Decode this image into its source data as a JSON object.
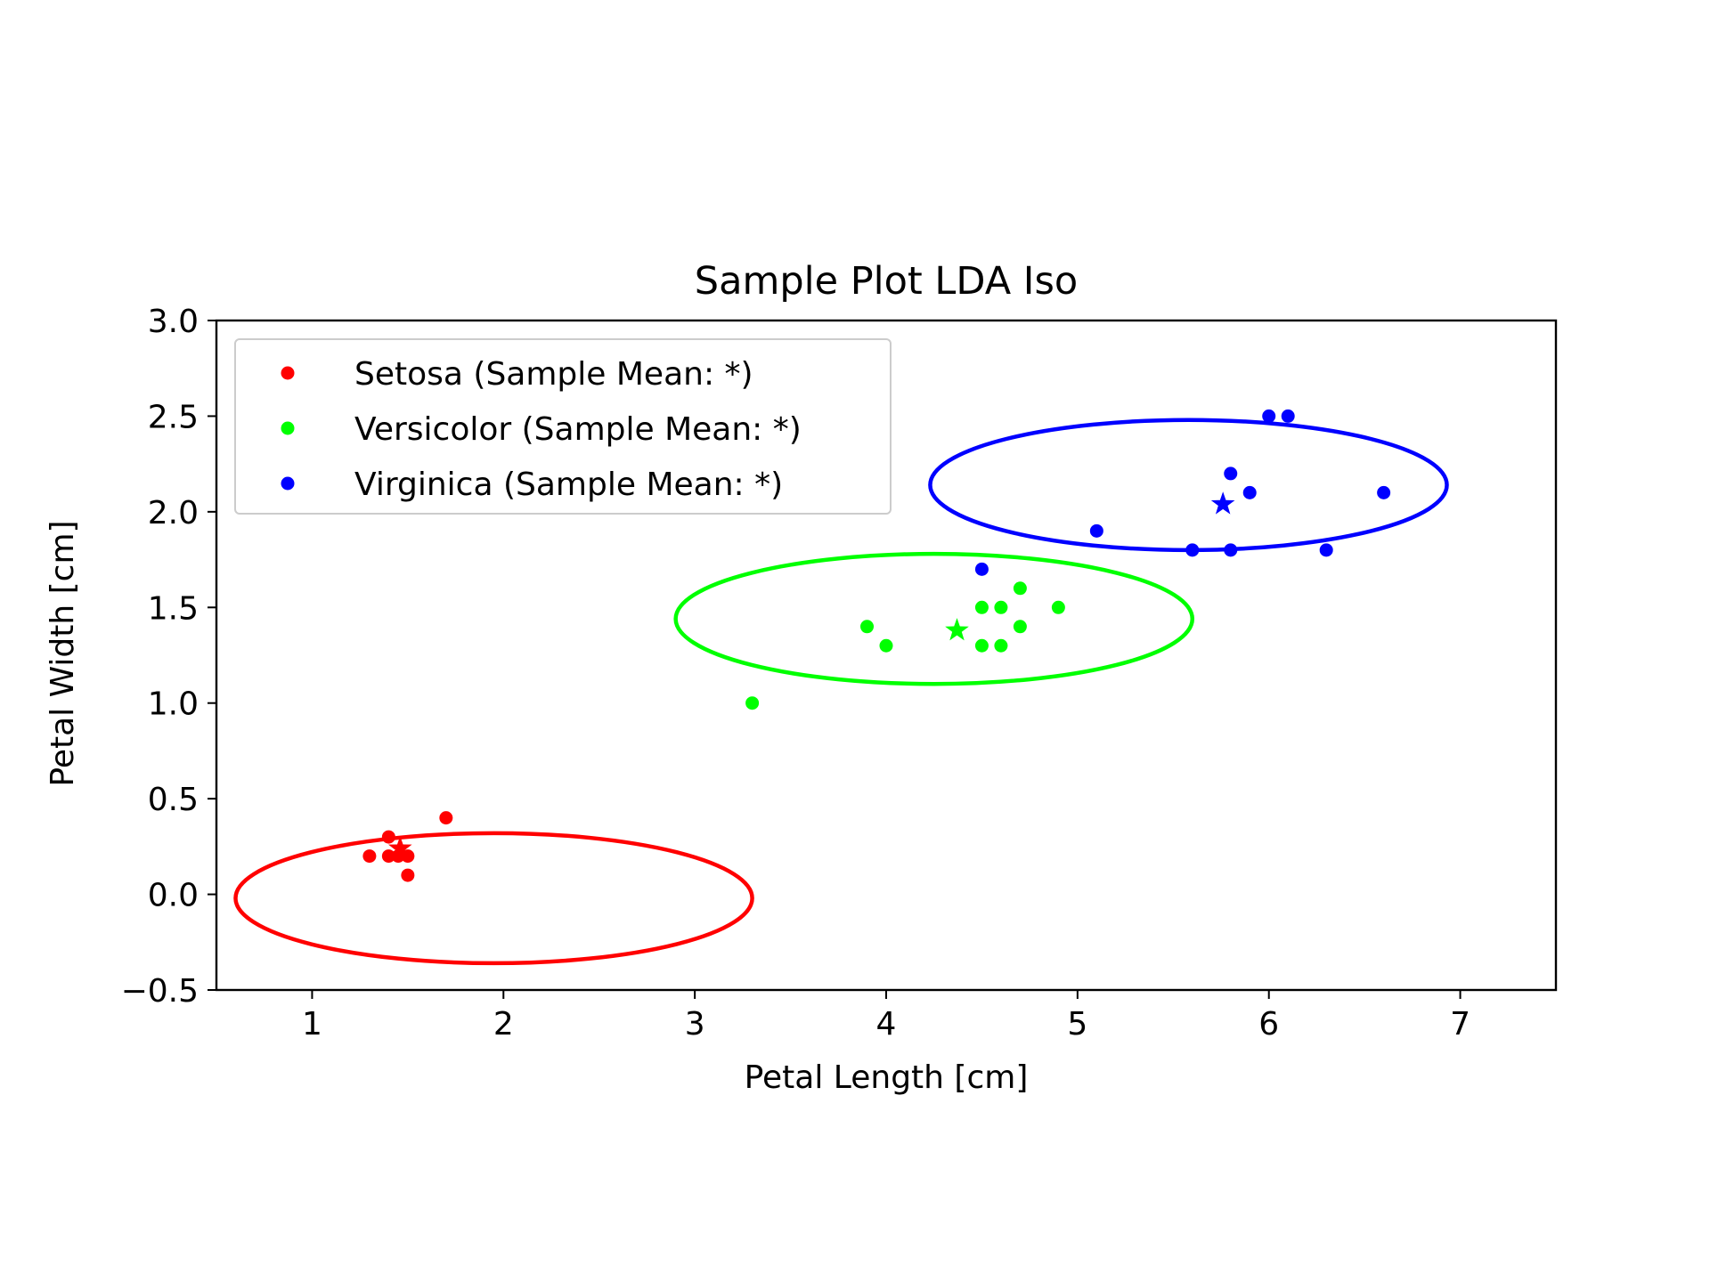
{
  "chart_data": {
    "type": "scatter",
    "title": "Sample Plot LDA Iso",
    "xlabel": "Petal Length [cm]",
    "ylabel": "Petal Width [cm]",
    "xlim": [
      0.5,
      7.5
    ],
    "ylim": [
      -0.5,
      3.0
    ],
    "xticks": [
      1,
      2,
      3,
      4,
      5,
      6,
      7
    ],
    "xtick_labels": [
      "1",
      "2",
      "3",
      "4",
      "5",
      "6",
      "7"
    ],
    "yticks": [
      -0.5,
      0.0,
      0.5,
      1.0,
      1.5,
      2.0,
      2.5,
      3.0
    ],
    "ytick_labels": [
      "−0.5",
      "0.0",
      "0.5",
      "1.0",
      "1.5",
      "2.0",
      "2.5",
      "3.0"
    ],
    "grid": false,
    "legend_position": "top-left",
    "series": [
      {
        "name": "Setosa (Sample Mean: *)",
        "color": "#ff0000",
        "points": [
          {
            "x": 1.3,
            "y": 0.2
          },
          {
            "x": 1.4,
            "y": 0.2
          },
          {
            "x": 1.4,
            "y": 0.3
          },
          {
            "x": 1.5,
            "y": 0.2
          },
          {
            "x": 1.5,
            "y": 0.1
          },
          {
            "x": 1.7,
            "y": 0.4
          },
          {
            "x": 1.45,
            "y": 0.2
          }
        ],
        "mean": {
          "x": 1.46,
          "y": 0.24
        },
        "ellipse": {
          "cx": 1.95,
          "cy": -0.02,
          "rx": 1.35,
          "ry": 0.34
        }
      },
      {
        "name": "Versicolor (Sample Mean: *)",
        "color": "#00ff00",
        "points": [
          {
            "x": 3.3,
            "y": 1.0
          },
          {
            "x": 3.9,
            "y": 1.4
          },
          {
            "x": 4.0,
            "y": 1.3
          },
          {
            "x": 4.5,
            "y": 1.5
          },
          {
            "x": 4.5,
            "y": 1.3
          },
          {
            "x": 4.6,
            "y": 1.5
          },
          {
            "x": 4.6,
            "y": 1.3
          },
          {
            "x": 4.7,
            "y": 1.6
          },
          {
            "x": 4.7,
            "y": 1.4
          },
          {
            "x": 4.9,
            "y": 1.5
          }
        ],
        "mean": {
          "x": 4.37,
          "y": 1.38
        },
        "ellipse": {
          "cx": 4.25,
          "cy": 1.44,
          "rx": 1.35,
          "ry": 0.34
        }
      },
      {
        "name": "Virginica (Sample Mean: *)",
        "color": "#0000ff",
        "points": [
          {
            "x": 4.5,
            "y": 1.7
          },
          {
            "x": 5.1,
            "y": 1.9
          },
          {
            "x": 5.6,
            "y": 1.8
          },
          {
            "x": 5.8,
            "y": 1.8
          },
          {
            "x": 5.8,
            "y": 2.2
          },
          {
            "x": 5.9,
            "y": 2.1
          },
          {
            "x": 6.0,
            "y": 2.5
          },
          {
            "x": 6.1,
            "y": 2.5
          },
          {
            "x": 6.3,
            "y": 1.8
          },
          {
            "x": 6.6,
            "y": 2.1
          }
        ],
        "mean": {
          "x": 5.76,
          "y": 2.04
        },
        "ellipse": {
          "cx": 5.58,
          "cy": 2.14,
          "rx": 1.35,
          "ry": 0.34
        }
      }
    ]
  }
}
